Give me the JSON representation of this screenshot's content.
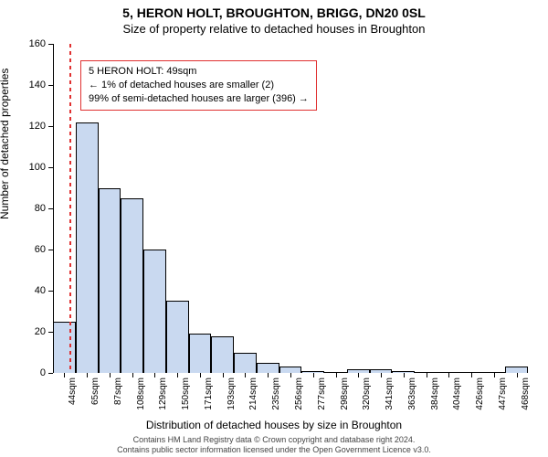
{
  "title": "5, HERON HOLT, BROUGHTON, BRIGG, DN20 0SL",
  "subtitle": "Size of property relative to detached houses in Broughton",
  "yaxis_label": "Number of detached properties",
  "xaxis_label": "Distribution of detached houses by size in Broughton",
  "footer_line1": "Contains HM Land Registry data © Crown copyright and database right 2024.",
  "footer_line2": "Contains public sector information licensed under the Open Government Licence v3.0.",
  "chart": {
    "type": "bar",
    "xcategories": [
      "44sqm",
      "65sqm",
      "87sqm",
      "108sqm",
      "129sqm",
      "150sqm",
      "171sqm",
      "193sqm",
      "214sqm",
      "235sqm",
      "256sqm",
      "277sqm",
      "298sqm",
      "320sqm",
      "341sqm",
      "363sqm",
      "384sqm",
      "404sqm",
      "426sqm",
      "447sqm",
      "468sqm"
    ],
    "values": [
      25,
      122,
      90,
      85,
      60,
      35,
      19,
      18,
      10,
      5,
      3,
      1,
      0,
      2,
      2,
      1,
      0,
      0,
      0,
      0,
      3
    ],
    "bar_fill": "#c9d9f0",
    "bar_border": "#000000",
    "background": "#ffffff",
    "ylim": [
      0,
      160
    ],
    "ytick_step": 20,
    "xtick_rotation": -90,
    "ylabel_fontsize": 12,
    "xlabel_fontsize": 12,
    "tick_fontsize": 11,
    "bar_border_width": 1
  },
  "marker": {
    "value_sqm": 49,
    "color": "#e03030",
    "dash": "2,2"
  },
  "legend": {
    "border_color": "#e03030",
    "border_width": 1,
    "line1": "5 HERON HOLT: 49sqm",
    "line2": "← 1% of detached houses are smaller (2)",
    "line3": "99% of semi-detached houses are larger (396) →"
  }
}
